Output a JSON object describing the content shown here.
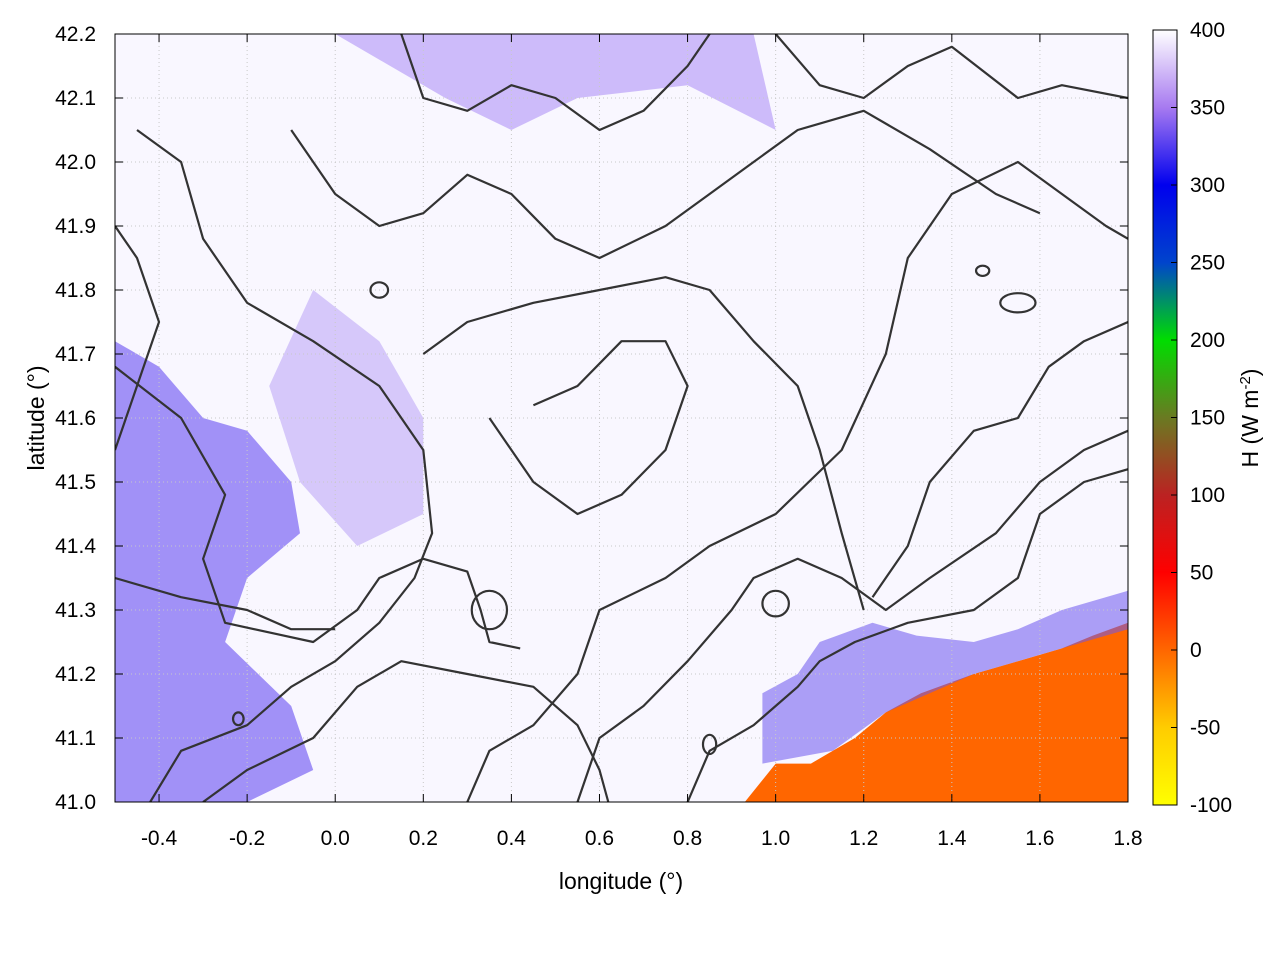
{
  "chart_data": {
    "type": "heatmap",
    "title": "",
    "xlabel": "longitude (°)",
    "ylabel": "latitude (°)",
    "xlim": [
      -0.5,
      1.8
    ],
    "ylim": [
      41.0,
      42.2
    ],
    "xticks": [
      "-0.4",
      "-0.2",
      "0.0",
      "0.2",
      "0.4",
      "0.6",
      "0.8",
      "1.0",
      "1.2",
      "1.4",
      "1.6",
      "1.8"
    ],
    "xtick_values": [
      -0.4,
      -0.2,
      0.0,
      0.2,
      0.4,
      0.6,
      0.8,
      1.0,
      1.2,
      1.4,
      1.6,
      1.8
    ],
    "yticks": [
      "41.0",
      "41.1",
      "41.2",
      "41.3",
      "41.4",
      "41.5",
      "41.6",
      "41.7",
      "41.8",
      "41.9",
      "42.0",
      "42.1",
      "42.2"
    ],
    "ytick_values": [
      41.0,
      41.1,
      41.2,
      41.3,
      41.4,
      41.5,
      41.6,
      41.7,
      41.8,
      41.9,
      42.0,
      42.1,
      42.2
    ],
    "grid": true,
    "colorbar": {
      "label_main": "H (W m",
      "label_sup": "-2",
      "label_end": ")",
      "range": [
        -100,
        400
      ],
      "ticks": [
        "-100",
        "-50",
        "0",
        "50",
        "100",
        "150",
        "200",
        "250",
        "300",
        "350",
        "400"
      ],
      "tick_values": [
        -100,
        -50,
        0,
        50,
        100,
        150,
        200,
        250,
        300,
        350,
        400
      ],
      "stops": [
        {
          "value": -100,
          "color": "#ffff00"
        },
        {
          "value": -50,
          "color": "#ffcc00"
        },
        {
          "value": 0,
          "color": "#ff6600"
        },
        {
          "value": 50,
          "color": "#ff0000"
        },
        {
          "value": 100,
          "color": "#bb2222"
        },
        {
          "value": 150,
          "color": "#6a7a22"
        },
        {
          "value": 200,
          "color": "#00dd00"
        },
        {
          "value": 250,
          "color": "#0044cc"
        },
        {
          "value": 300,
          "color": "#0000ee"
        },
        {
          "value": 350,
          "color": "#a77af0"
        },
        {
          "value": 400,
          "color": "#ffffff"
        }
      ]
    },
    "field_regions": [
      {
        "name": "sea",
        "value": 0,
        "color": "#ff6600",
        "polygon": [
          [
            0.93,
            41.0
          ],
          [
            1.0,
            41.06
          ],
          [
            1.08,
            41.06
          ],
          [
            1.13,
            41.08
          ],
          [
            1.18,
            41.1
          ],
          [
            1.25,
            41.14
          ],
          [
            1.33,
            41.17
          ],
          [
            1.45,
            41.2
          ],
          [
            1.55,
            41.22
          ],
          [
            1.65,
            41.24
          ],
          [
            1.72,
            41.26
          ],
          [
            1.8,
            41.28
          ],
          [
            1.8,
            41.0
          ]
        ]
      },
      {
        "name": "western-high-flux",
        "value": 310,
        "color": "#5a3ef0",
        "polygon": [
          [
            -0.5,
            41.72
          ],
          [
            -0.4,
            41.68
          ],
          [
            -0.3,
            41.6
          ],
          [
            -0.2,
            41.58
          ],
          [
            -0.1,
            41.5
          ],
          [
            -0.08,
            41.42
          ],
          [
            -0.2,
            41.35
          ],
          [
            -0.25,
            41.25
          ],
          [
            -0.1,
            41.15
          ],
          [
            -0.05,
            41.05
          ],
          [
            -0.2,
            41.0
          ],
          [
            -0.5,
            41.0
          ]
        ]
      },
      {
        "name": "coastal-high-flux",
        "value": 300,
        "color": "#6b55ee",
        "polygon": [
          [
            0.97,
            41.06
          ],
          [
            0.97,
            41.17
          ],
          [
            1.05,
            41.2
          ],
          [
            1.1,
            41.25
          ],
          [
            1.22,
            41.28
          ],
          [
            1.32,
            41.26
          ],
          [
            1.45,
            41.25
          ],
          [
            1.55,
            41.27
          ],
          [
            1.65,
            41.3
          ],
          [
            1.8,
            41.33
          ],
          [
            1.8,
            41.27
          ],
          [
            1.65,
            41.24
          ],
          [
            1.45,
            41.2
          ],
          [
            1.25,
            41.14
          ],
          [
            1.13,
            41.08
          ]
        ]
      },
      {
        "name": "northern-high-flux",
        "value": 330,
        "color": "#a98af5",
        "polygon": [
          [
            0.0,
            42.2
          ],
          [
            0.25,
            42.1
          ],
          [
            0.4,
            42.05
          ],
          [
            0.55,
            42.1
          ],
          [
            0.8,
            42.12
          ],
          [
            1.0,
            42.05
          ],
          [
            0.95,
            42.2
          ]
        ]
      },
      {
        "name": "west-central-high-flux",
        "value": 335,
        "color": "#b9a2f6",
        "polygon": [
          [
            -0.05,
            41.8
          ],
          [
            0.1,
            41.72
          ],
          [
            0.2,
            41.6
          ],
          [
            0.2,
            41.45
          ],
          [
            0.05,
            41.4
          ],
          [
            -0.08,
            41.5
          ],
          [
            -0.15,
            41.65
          ]
        ]
      }
    ],
    "contours": [
      {
        "name": "contour-a",
        "points": [
          [
            -0.5,
            41.68
          ],
          [
            -0.35,
            41.6
          ],
          [
            -0.25,
            41.48
          ],
          [
            -0.3,
            41.38
          ],
          [
            -0.25,
            41.28
          ],
          [
            -0.05,
            41.25
          ],
          [
            0.05,
            41.3
          ],
          [
            0.1,
            41.35
          ],
          [
            0.2,
            41.38
          ],
          [
            0.3,
            41.36
          ],
          [
            0.33,
            41.3
          ],
          [
            0.35,
            41.25
          ],
          [
            0.42,
            41.24
          ]
        ]
      },
      {
        "name": "contour-b",
        "points": [
          [
            -0.42,
            41.0
          ],
          [
            -0.35,
            41.08
          ],
          [
            -0.2,
            41.12
          ],
          [
            -0.1,
            41.18
          ],
          [
            0.0,
            41.22
          ],
          [
            0.1,
            41.28
          ],
          [
            0.18,
            41.35
          ],
          [
            0.22,
            41.42
          ],
          [
            0.2,
            41.55
          ],
          [
            0.1,
            41.65
          ],
          [
            -0.05,
            41.72
          ],
          [
            -0.2,
            41.78
          ],
          [
            -0.3,
            41.88
          ],
          [
            -0.35,
            42.0
          ],
          [
            -0.45,
            42.05
          ]
        ]
      },
      {
        "name": "contour-c",
        "points": [
          [
            -0.3,
            41.0
          ],
          [
            -0.2,
            41.05
          ],
          [
            -0.05,
            41.1
          ],
          [
            0.05,
            41.18
          ],
          [
            0.15,
            41.22
          ],
          [
            0.3,
            41.2
          ],
          [
            0.45,
            41.18
          ],
          [
            0.55,
            41.12
          ],
          [
            0.6,
            41.05
          ],
          [
            0.62,
            41.0
          ]
        ]
      },
      {
        "name": "contour-d",
        "points": [
          [
            0.3,
            41.0
          ],
          [
            0.35,
            41.08
          ],
          [
            0.45,
            41.12
          ],
          [
            0.55,
            41.2
          ],
          [
            0.6,
            41.3
          ],
          [
            0.75,
            41.35
          ],
          [
            0.85,
            41.4
          ],
          [
            1.0,
            41.45
          ],
          [
            1.15,
            41.55
          ],
          [
            1.25,
            41.7
          ],
          [
            1.3,
            41.85
          ],
          [
            1.4,
            41.95
          ],
          [
            1.55,
            42.0
          ],
          [
            1.65,
            41.95
          ],
          [
            1.75,
            41.9
          ],
          [
            1.8,
            41.88
          ]
        ]
      },
      {
        "name": "contour-e",
        "points": [
          [
            0.55,
            41.0
          ],
          [
            0.6,
            41.1
          ],
          [
            0.7,
            41.15
          ],
          [
            0.8,
            41.22
          ],
          [
            0.9,
            41.3
          ],
          [
            0.95,
            41.35
          ],
          [
            1.05,
            41.38
          ],
          [
            1.15,
            41.35
          ],
          [
            1.25,
            41.3
          ],
          [
            1.35,
            41.35
          ],
          [
            1.5,
            41.42
          ],
          [
            1.6,
            41.5
          ],
          [
            1.7,
            41.55
          ],
          [
            1.8,
            41.58
          ]
        ]
      },
      {
        "name": "contour-f",
        "points": [
          [
            0.8,
            41.0
          ],
          [
            0.85,
            41.08
          ],
          [
            0.95,
            41.12
          ],
          [
            1.05,
            41.18
          ],
          [
            1.1,
            41.22
          ],
          [
            1.18,
            41.25
          ],
          [
            1.3,
            41.28
          ],
          [
            1.45,
            41.3
          ],
          [
            1.55,
            41.35
          ],
          [
            1.6,
            41.45
          ],
          [
            1.7,
            41.5
          ],
          [
            1.8,
            41.52
          ]
        ]
      },
      {
        "name": "contour-g",
        "points": [
          [
            0.2,
            41.7
          ],
          [
            0.3,
            41.75
          ],
          [
            0.45,
            41.78
          ],
          [
            0.6,
            41.8
          ],
          [
            0.75,
            41.82
          ],
          [
            0.85,
            41.8
          ],
          [
            0.95,
            41.72
          ],
          [
            1.05,
            41.65
          ],
          [
            1.1,
            41.55
          ],
          [
            1.15,
            41.42
          ],
          [
            1.2,
            41.3
          ]
        ]
      },
      {
        "name": "contour-h",
        "points": [
          [
            -0.1,
            42.05
          ],
          [
            0.0,
            41.95
          ],
          [
            0.1,
            41.9
          ],
          [
            0.2,
            41.92
          ],
          [
            0.3,
            41.98
          ],
          [
            0.4,
            41.95
          ],
          [
            0.5,
            41.88
          ],
          [
            0.6,
            41.85
          ],
          [
            0.75,
            41.9
          ],
          [
            0.85,
            41.95
          ],
          [
            0.95,
            42.0
          ],
          [
            1.05,
            42.05
          ],
          [
            1.2,
            42.08
          ],
          [
            1.35,
            42.02
          ],
          [
            1.5,
            41.95
          ],
          [
            1.6,
            41.92
          ]
        ]
      },
      {
        "name": "contour-i",
        "points": [
          [
            0.15,
            42.2
          ],
          [
            0.2,
            42.1
          ],
          [
            0.3,
            42.08
          ],
          [
            0.4,
            42.12
          ],
          [
            0.5,
            42.1
          ],
          [
            0.6,
            42.05
          ],
          [
            0.7,
            42.08
          ],
          [
            0.8,
            42.15
          ],
          [
            0.85,
            42.2
          ]
        ]
      },
      {
        "name": "contour-j",
        "points": [
          [
            1.0,
            42.2
          ],
          [
            1.1,
            42.12
          ],
          [
            1.2,
            42.1
          ],
          [
            1.3,
            42.15
          ],
          [
            1.4,
            42.18
          ],
          [
            1.55,
            42.1
          ],
          [
            1.65,
            42.12
          ],
          [
            1.8,
            42.1
          ]
        ]
      },
      {
        "name": "contour-k",
        "points": [
          [
            0.35,
            41.6
          ],
          [
            0.45,
            41.5
          ],
          [
            0.55,
            41.45
          ],
          [
            0.65,
            41.48
          ],
          [
            0.75,
            41.55
          ],
          [
            0.8,
            41.65
          ],
          [
            0.75,
            41.72
          ],
          [
            0.65,
            41.72
          ],
          [
            0.55,
            41.65
          ],
          [
            0.45,
            41.62
          ]
        ]
      },
      {
        "name": "contour-l",
        "points": [
          [
            -0.5,
            41.35
          ],
          [
            -0.35,
            41.32
          ],
          [
            -0.2,
            41.3
          ],
          [
            -0.1,
            41.27
          ],
          [
            0.0,
            41.27
          ]
        ]
      },
      {
        "name": "contour-m",
        "points": [
          [
            -0.5,
            41.55
          ],
          [
            -0.45,
            41.65
          ],
          [
            -0.4,
            41.75
          ],
          [
            -0.45,
            41.85
          ],
          [
            -0.5,
            41.9
          ]
        ]
      },
      {
        "name": "contour-n",
        "points": [
          [
            1.22,
            41.32
          ],
          [
            1.3,
            41.4
          ],
          [
            1.35,
            41.5
          ],
          [
            1.45,
            41.58
          ],
          [
            1.55,
            41.6
          ],
          [
            1.62,
            41.68
          ],
          [
            1.7,
            41.72
          ],
          [
            1.8,
            41.75
          ]
        ]
      }
    ],
    "small_loops": [
      {
        "name": "loop-1",
        "cx": 0.1,
        "cy": 41.8,
        "rx": 0.02,
        "ry": 0.012
      },
      {
        "name": "loop-2",
        "cx": 0.35,
        "cy": 41.3,
        "rx": 0.04,
        "ry": 0.03
      },
      {
        "name": "loop-3",
        "cx": 1.0,
        "cy": 41.31,
        "rx": 0.03,
        "ry": 0.02
      },
      {
        "name": "loop-4",
        "cx": 1.55,
        "cy": 41.78,
        "rx": 0.04,
        "ry": 0.015
      },
      {
        "name": "loop-5",
        "cx": -0.22,
        "cy": 41.13,
        "rx": 0.012,
        "ry": 0.01
      },
      {
        "name": "loop-6",
        "cx": 0.85,
        "cy": 41.09,
        "rx": 0.015,
        "ry": 0.015
      },
      {
        "name": "loop-7",
        "cx": 1.47,
        "cy": 41.83,
        "rx": 0.015,
        "ry": 0.008
      }
    ]
  }
}
